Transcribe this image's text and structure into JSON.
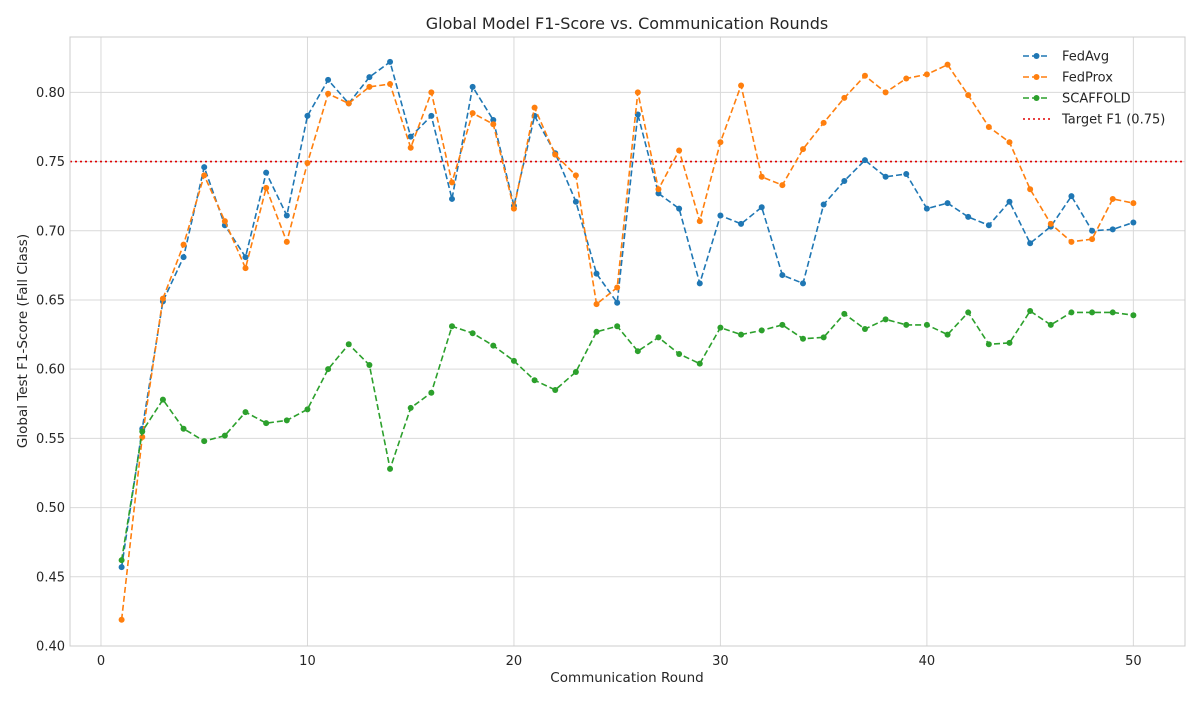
{
  "chart_data": {
    "type": "line",
    "title": "Global Model F1-Score vs. Communication Rounds",
    "xlabel": "Communication Round",
    "ylabel": "Global Test F1-Score (Fall Class)",
    "xlim": [
      -1.5,
      52.5
    ],
    "ylim": [
      0.4,
      0.84
    ],
    "xticks": [
      0,
      10,
      20,
      30,
      40,
      50
    ],
    "xtick_labels": [
      "0",
      "10",
      "20",
      "30",
      "40",
      "50"
    ],
    "yticks": [
      0.4,
      0.45,
      0.5,
      0.55,
      0.6,
      0.65,
      0.7,
      0.75,
      0.8
    ],
    "ytick_labels": [
      "0.40",
      "0.45",
      "0.50",
      "0.55",
      "0.60",
      "0.65",
      "0.70",
      "0.75",
      "0.80"
    ],
    "grid": true,
    "legend_position": "top-right",
    "x": [
      1,
      2,
      3,
      4,
      5,
      6,
      7,
      8,
      9,
      10,
      11,
      12,
      13,
      14,
      15,
      16,
      17,
      18,
      19,
      20,
      21,
      22,
      23,
      24,
      25,
      26,
      27,
      28,
      29,
      30,
      31,
      32,
      33,
      34,
      35,
      36,
      37,
      38,
      39,
      40,
      41,
      42,
      43,
      44,
      45,
      46,
      47,
      48,
      49,
      50
    ],
    "series": [
      {
        "name": "FedAvg",
        "color": "#1f77b4",
        "style": "dashed",
        "marker": "circle",
        "values": [
          0.457,
          0.557,
          0.649,
          0.681,
          0.746,
          0.704,
          0.681,
          0.742,
          0.711,
          0.783,
          0.809,
          0.792,
          0.811,
          0.822,
          0.768,
          0.783,
          0.723,
          0.804,
          0.78,
          0.718,
          0.783,
          0.756,
          0.721,
          0.669,
          0.648,
          0.784,
          0.727,
          0.716,
          0.662,
          0.711,
          0.705,
          0.717,
          0.668,
          0.662,
          0.719,
          0.736,
          0.751,
          0.739,
          0.741,
          0.716,
          0.72,
          0.71,
          0.704,
          0.721,
          0.691,
          0.703,
          0.725,
          0.7,
          0.701,
          0.706
        ]
      },
      {
        "name": "FedProx",
        "color": "#ff7f0e",
        "style": "dashed",
        "marker": "circle",
        "values": [
          0.419,
          0.551,
          0.651,
          0.69,
          0.74,
          0.707,
          0.673,
          0.731,
          0.692,
          0.749,
          0.799,
          0.792,
          0.804,
          0.806,
          0.76,
          0.8,
          0.735,
          0.785,
          0.777,
          0.716,
          0.789,
          0.755,
          0.74,
          0.647,
          0.659,
          0.8,
          0.73,
          0.758,
          0.707,
          0.764,
          0.805,
          0.739,
          0.733,
          0.759,
          0.778,
          0.796,
          0.812,
          0.8,
          0.81,
          0.813,
          0.82,
          0.798,
          0.775,
          0.764,
          0.73,
          0.705,
          0.692,
          0.694,
          0.723,
          0.72
        ]
      },
      {
        "name": "SCAFFOLD",
        "color": "#2ca02c",
        "style": "dashed",
        "marker": "circle",
        "values": [
          0.462,
          0.555,
          0.578,
          0.557,
          0.548,
          0.552,
          0.569,
          0.561,
          0.563,
          0.571,
          0.6,
          0.618,
          0.603,
          0.528,
          0.572,
          0.583,
          0.631,
          0.626,
          0.617,
          0.606,
          0.592,
          0.585,
          0.598,
          0.627,
          0.631,
          0.613,
          0.623,
          0.611,
          0.604,
          0.63,
          0.625,
          0.628,
          0.632,
          0.622,
          0.623,
          0.64,
          0.629,
          0.636,
          0.632,
          0.632,
          0.625,
          0.641,
          0.618,
          0.619,
          0.642,
          0.632,
          0.641,
          0.641,
          0.641,
          0.639
        ]
      }
    ],
    "reference_lines": [
      {
        "name": "Target F1 (0.75)",
        "y": 0.75,
        "color": "#e00000",
        "style": "dotted"
      }
    ]
  }
}
